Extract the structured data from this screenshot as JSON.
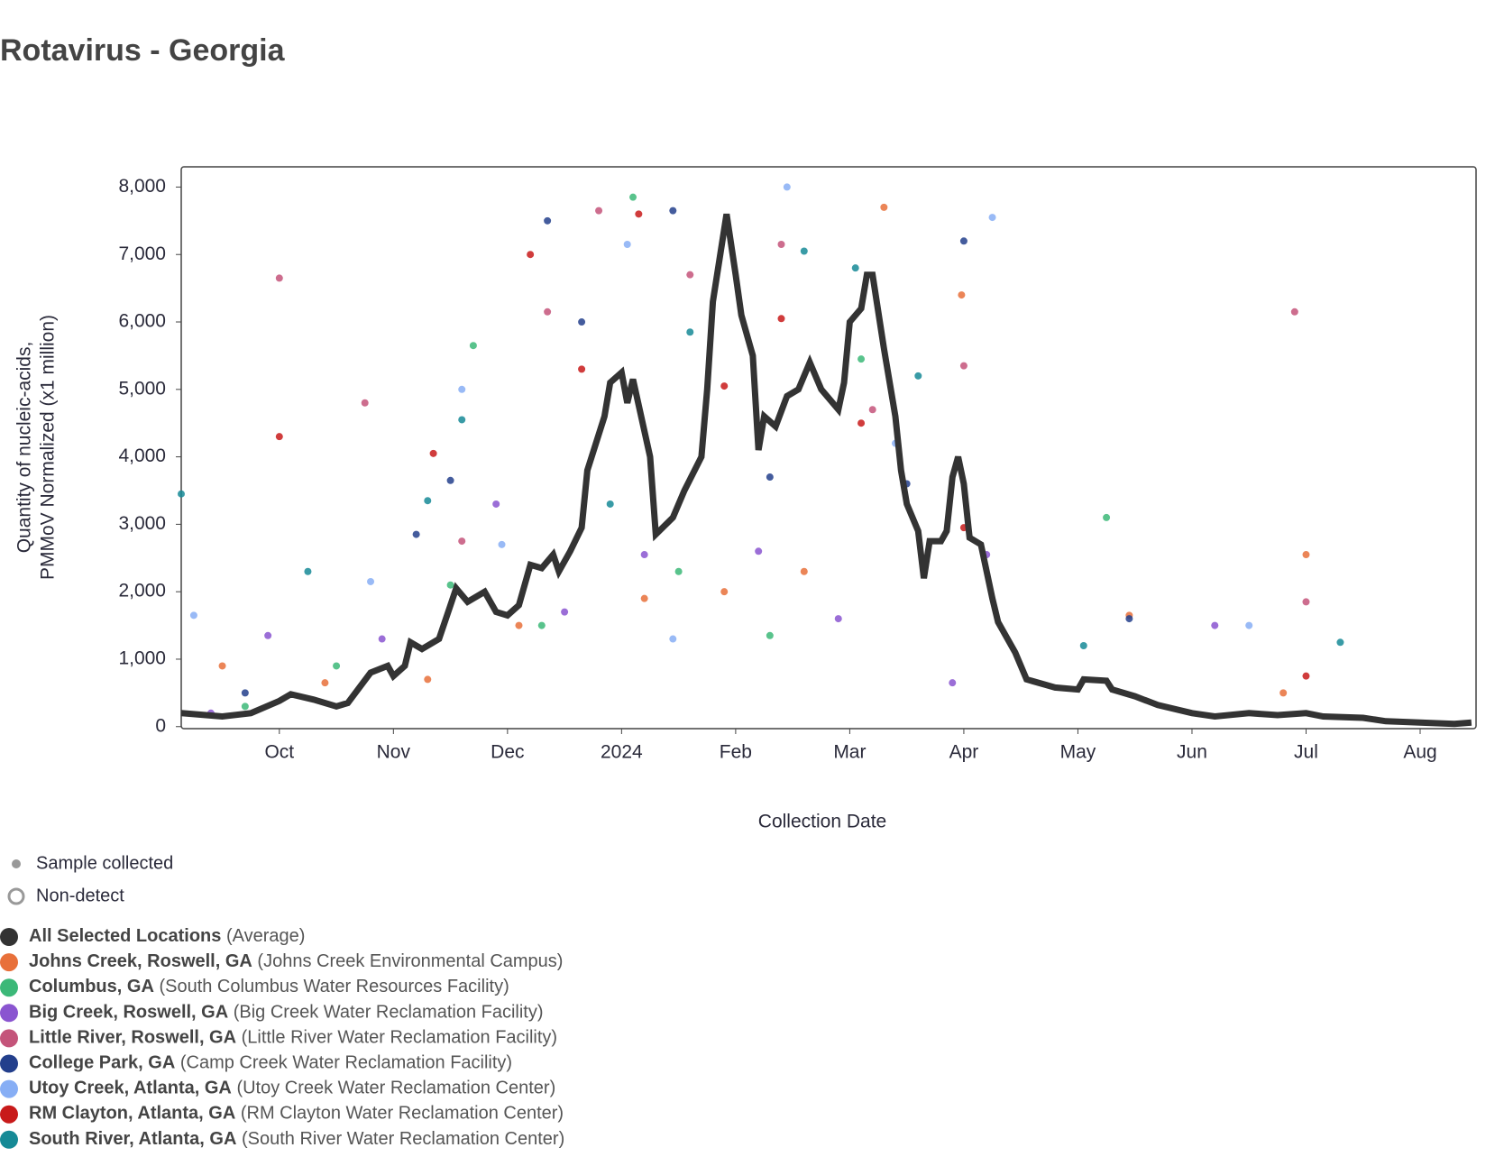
{
  "chart_data": {
    "type": "scatter-line",
    "title": "Rotavirus - Georgia",
    "y_label": [
      "Quantity of nucleic-acids,",
      "PMMoV Normalized (x1 million)"
    ],
    "x_label": "Collection Date",
    "xlim": [
      -0.86,
      10.49
    ],
    "xticks": [
      {
        "value": 0,
        "label": "Oct"
      },
      {
        "value": 1,
        "label": "Nov"
      },
      {
        "value": 2,
        "label": "Dec"
      },
      {
        "value": 3,
        "label": "2024"
      },
      {
        "value": 4,
        "label": "Feb"
      },
      {
        "value": 5,
        "label": "Mar"
      },
      {
        "value": 6,
        "label": "Apr"
      },
      {
        "value": 7,
        "label": "May"
      },
      {
        "value": 8,
        "label": "Jun"
      },
      {
        "value": 9,
        "label": "Jul"
      },
      {
        "value": 10,
        "label": "Aug"
      }
    ],
    "ylim": [
      -30,
      8300
    ],
    "yticks": [
      0,
      {
        "value": 1000,
        "label": "1,000"
      },
      {
        "value": 2000,
        "label": "2,000"
      },
      {
        "value": 3000,
        "label": "3,000"
      },
      {
        "value": 4000,
        "label": "4,000"
      },
      {
        "value": 5000,
        "label": "5,000"
      },
      {
        "value": 6000,
        "label": "6,000"
      },
      {
        "value": 7000,
        "label": "7,000"
      },
      {
        "value": 8000,
        "label": "8,000"
      }
    ],
    "symbol_legend": [
      "Sample collected",
      "Non-detect"
    ],
    "series": [
      {
        "name": "All Selected Locations",
        "detail": "(Average)",
        "color": "#333333",
        "kind": "line",
        "x": [
          -0.86,
          -0.5,
          -0.25,
          0,
          0.1,
          0.3,
          0.5,
          0.6,
          0.8,
          0.95,
          1.0,
          1.1,
          1.15,
          1.25,
          1.4,
          1.5,
          1.55,
          1.65,
          1.8,
          1.9,
          2.0,
          2.1,
          2.2,
          2.3,
          2.4,
          2.45,
          2.55,
          2.65,
          2.7,
          2.85,
          2.9,
          3.0,
          3.05,
          3.1,
          3.25,
          3.3,
          3.45,
          3.55,
          3.7,
          3.75,
          3.8,
          3.92,
          4.0,
          4.05,
          4.15,
          4.2,
          4.25,
          4.35,
          4.45,
          4.55,
          4.65,
          4.75,
          4.9,
          4.95,
          5.0,
          5.1,
          5.15,
          5.2,
          5.3,
          5.4,
          5.45,
          5.5,
          5.55,
          5.6,
          5.65,
          5.7,
          5.8,
          5.85,
          5.9,
          5.95,
          6.0,
          6.05,
          6.15,
          6.25,
          6.3,
          6.45,
          6.55,
          6.8,
          7.0,
          7.05,
          7.25,
          7.3,
          7.5,
          7.7,
          8.0,
          8.2,
          8.5,
          8.75,
          9.0,
          9.15,
          9.5,
          9.7,
          10.0,
          10.3,
          10.45
        ],
        "values": [
          200,
          150,
          200,
          380,
          480,
          400,
          300,
          350,
          800,
          900,
          750,
          900,
          1250,
          1150,
          1300,
          1800,
          2050,
          1850,
          2000,
          1700,
          1650,
          1800,
          2400,
          2350,
          2550,
          2300,
          2600,
          2950,
          3800,
          4600,
          5100,
          5250,
          4800,
          5150,
          4000,
          2850,
          3100,
          3500,
          4000,
          5000,
          6300,
          7600,
          6700,
          6100,
          5500,
          4100,
          4600,
          4450,
          4900,
          5000,
          5400,
          5000,
          4700,
          5100,
          6000,
          6200,
          6700,
          6700,
          5600,
          4600,
          3800,
          3300,
          3100,
          2900,
          2200,
          2750,
          2750,
          2900,
          3700,
          4000,
          3600,
          2800,
          2700,
          1900,
          1550,
          1100,
          700,
          580,
          550,
          700,
          680,
          550,
          450,
          320,
          200,
          150,
          200,
          170,
          200,
          150,
          130,
          80,
          60,
          40,
          60
        ]
      },
      {
        "name": "Johns Creek, Roswell, GA",
        "detail": "(Johns Creek Environmental Campus)",
        "color": "#e8703a",
        "kind": "points",
        "x": [
          -0.5,
          0.4,
          1.3,
          2.1,
          3.2,
          3.9,
          4.6,
          5.3,
          5.98,
          7.45,
          8.8,
          9.0
        ],
        "values": [
          900,
          650,
          700,
          1500,
          1900,
          2000,
          2300,
          7700,
          6400,
          1650,
          500,
          2550
        ]
      },
      {
        "name": "Columbus, GA",
        "detail": "(South Columbus Water Resources Facility)",
        "color": "#3cb878",
        "kind": "points",
        "x": [
          -0.3,
          0.5,
          1.5,
          1.7,
          2.3,
          3.1,
          3.5,
          4.3,
          5.1,
          7.25
        ],
        "values": [
          300,
          900,
          2100,
          5650,
          1500,
          7850,
          2300,
          1350,
          5450,
          3100
        ]
      },
      {
        "name": "Big Creek, Roswell, GA",
        "detail": "(Big Creek Water Reclamation Facility)",
        "color": "#8a55d0",
        "kind": "points",
        "x": [
          -0.6,
          -0.1,
          0.9,
          1.9,
          2.5,
          3.2,
          4.2,
          4.9,
          5.9,
          6.2,
          8.2
        ],
        "values": [
          200,
          1350,
          1300,
          3300,
          1700,
          2550,
          2600,
          1600,
          650,
          2550,
          1500
        ]
      },
      {
        "name": "Little River, Roswell, GA",
        "detail": "(Little River Water Reclamation Facility)",
        "color": "#c4547a",
        "kind": "points",
        "x": [
          0.0,
          0.75,
          1.6,
          2.35,
          2.8,
          3.6,
          4.4,
          5.2,
          6.0,
          8.9,
          9.0
        ],
        "values": [
          6650,
          4800,
          2750,
          6150,
          7650,
          6700,
          7150,
          4700,
          5350,
          6150,
          1850
        ]
      },
      {
        "name": "College Park, GA",
        "detail": "(Camp Creek Water Reclamation Facility)",
        "color": "#233f8c",
        "kind": "points",
        "x": [
          -0.3,
          1.2,
          1.5,
          2.35,
          2.65,
          3.45,
          4.3,
          5.5,
          6.0,
          7.45
        ],
        "values": [
          500,
          2850,
          3650,
          7500,
          6000,
          7650,
          3700,
          3600,
          7200,
          1600
        ]
      },
      {
        "name": "Utoy Creek, Atlanta, GA",
        "detail": "(Utoy Creek Water Reclamation Center)",
        "color": "#87aef5",
        "kind": "points",
        "x": [
          -0.75,
          0.8,
          1.6,
          1.95,
          3.05,
          3.45,
          4.45,
          5.4,
          6.25,
          8.5
        ],
        "values": [
          1650,
          2150,
          5000,
          2700,
          7150,
          1300,
          8000,
          4200,
          7550,
          1500
        ]
      },
      {
        "name": "RM Clayton, Atlanta, GA",
        "detail": "(RM Clayton Water Reclamation Center)",
        "color": "#c81a1a",
        "kind": "points",
        "x": [
          0.0,
          1.35,
          2.2,
          2.65,
          3.15,
          3.9,
          4.4,
          5.1,
          6.0,
          9.0
        ],
        "values": [
          4300,
          4050,
          7000,
          5300,
          7600,
          5050,
          6050,
          4500,
          2950,
          750
        ]
      },
      {
        "name": "South River, Atlanta, GA",
        "detail": "(South River Water Reclamation Center)",
        "color": "#168a96",
        "kind": "points",
        "x": [
          -0.86,
          0.25,
          1.3,
          1.6,
          2.9,
          3.6,
          4.6,
          5.05,
          5.6,
          7.05,
          9.3
        ],
        "values": [
          3450,
          2300,
          3350,
          4550,
          3300,
          5850,
          7050,
          6800,
          5200,
          1200,
          1250
        ]
      }
    ]
  }
}
